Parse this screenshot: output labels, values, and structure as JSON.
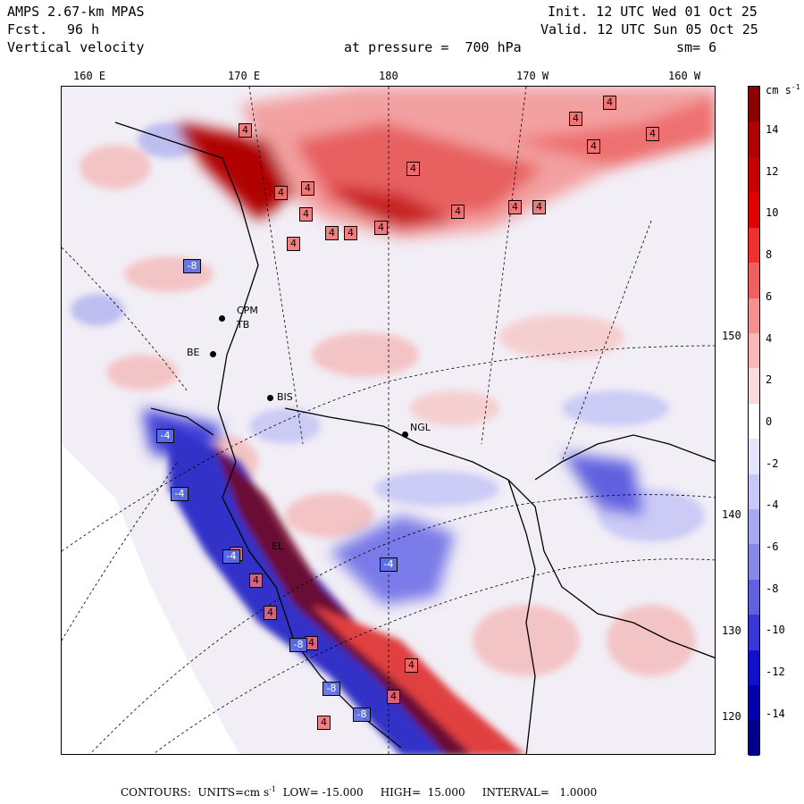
{
  "header": {
    "model": "AMPS 2.67-km MPAS",
    "fcst_label": "Fcst.",
    "fcst_value": "96 h",
    "field": "Vertical velocity",
    "init": "Init. 12 UTC Wed 01 Oct 25",
    "valid": "Valid. 12 UTC Sun 05 Oct 25",
    "pressure": "at pressure =  700 hPa",
    "smoothing": "sm= 6"
  },
  "lon_labels": [
    "160 E",
    "170 E",
    "180",
    "170 W",
    "160 W"
  ],
  "lat_labels": [
    "150 W",
    "140 W",
    "130 W",
    "120 W"
  ],
  "legend": {
    "units": "cm s",
    "units_exp": "-1",
    "labels": [
      "14",
      "12",
      "10",
      "8",
      "6",
      "4",
      "2",
      "0",
      "-2",
      "-4",
      "-6",
      "-8",
      "-10",
      "-12",
      "-14"
    ],
    "colors": [
      "#8b0000",
      "#b00000",
      "#c80000",
      "#e00000",
      "#f03030",
      "#f06060",
      "#f59090",
      "#f8b8b8",
      "#fbdada",
      "#ffffff",
      "#e4e4ff",
      "#c8c8f8",
      "#a8a8f0",
      "#8888e8",
      "#6060e0",
      "#3838d8",
      "#1010d0",
      "#0000b0",
      "#00008c"
    ]
  },
  "stations": [
    {
      "id": "cpm",
      "label": "CPM"
    },
    {
      "id": "tb",
      "label": "TB"
    },
    {
      "id": "be",
      "label": "BE"
    },
    {
      "id": "bis",
      "label": "BIS"
    },
    {
      "id": "ngl",
      "label": "NGL"
    },
    {
      "id": "el",
      "label": "EL"
    }
  ],
  "contour_labels": {
    "positive": [
      "4",
      "4",
      "4",
      "4",
      "4",
      "4",
      "4",
      "4",
      "4",
      "4",
      "4",
      "4",
      "4",
      "4",
      "4",
      "4",
      "4",
      "4",
      "4",
      "4",
      "4",
      "4",
      "4"
    ],
    "negative": [
      "-8",
      "-4",
      "-4",
      "-4",
      "-8",
      "-8",
      "-8",
      "-4"
    ]
  },
  "footer": {
    "contours": "CONTOURS:",
    "units": "UNITS=cm s",
    "units_exp": "-1",
    "low": "LOW= -15.000",
    "high": "HIGH=  15.000",
    "interval": "INTERVAL=   1.0000"
  }
}
